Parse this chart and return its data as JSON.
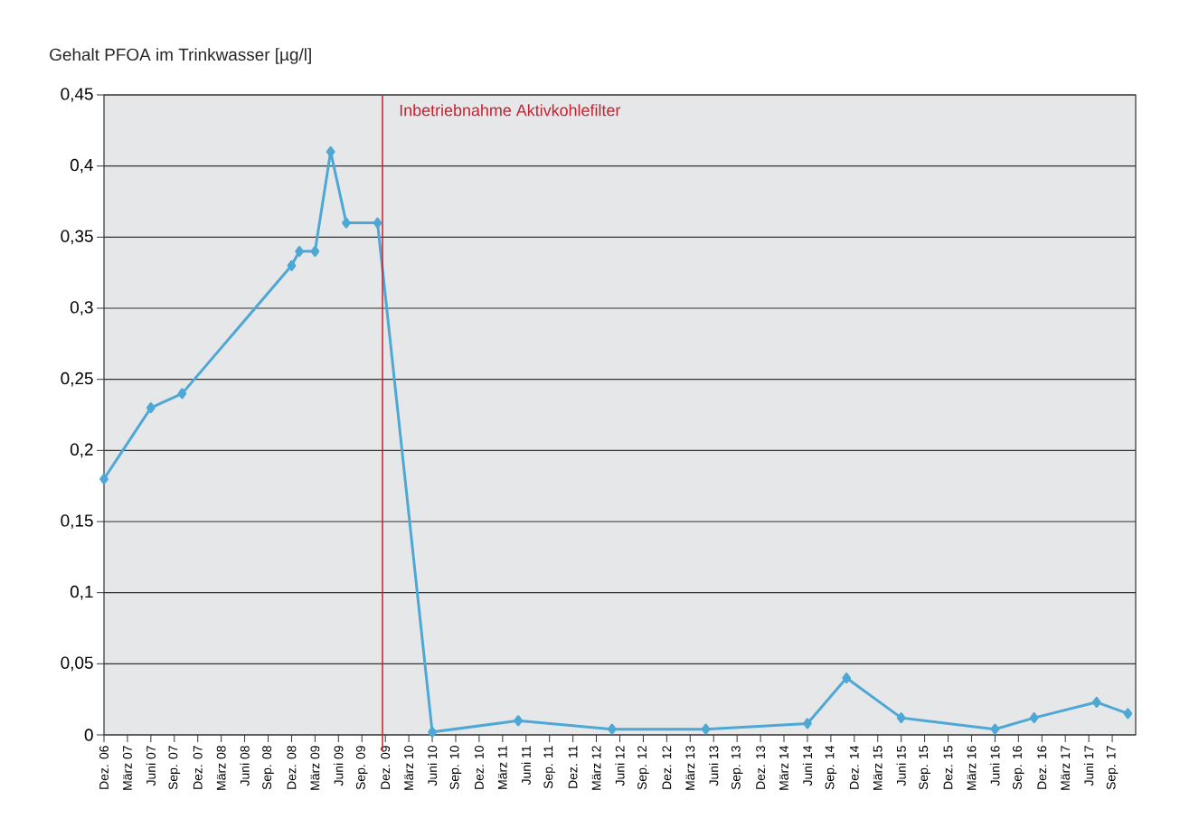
{
  "chart_data": {
    "type": "line",
    "ylabel": "Gehalt PFOA im Trinkwasser [µg/l]",
    "x": [
      "2006-12",
      "2007-06",
      "2007-10",
      "2008-12",
      "2009-01",
      "2009-03",
      "2009-05",
      "2009-07",
      "2009-11",
      "2010-06",
      "2011-05",
      "2012-05",
      "2013-05",
      "2014-06",
      "2014-11",
      "2015-06",
      "2016-06",
      "2016-11",
      "2017-07",
      "2017-11"
    ],
    "series": [
      {
        "color": "#4da8d5",
        "values": [
          0.18,
          0.23,
          0.24,
          0.33,
          0.34,
          0.34,
          0.41,
          0.36,
          0.36,
          0.002,
          0.01,
          0.004,
          0.004,
          0.008,
          0.04,
          0.012,
          0.004,
          0.012,
          0.023,
          0.015
        ]
      }
    ],
    "marker": "diamond",
    "line_style": "solid",
    "grid": "y",
    "xlim": [
      "2006-12",
      "2017-12"
    ],
    "xticks": [
      {
        "value": "2006-12",
        "label": "Dez. 06"
      },
      {
        "value": "2007-03",
        "label": "März 07"
      },
      {
        "value": "2007-06",
        "label": "Juni 07"
      },
      {
        "value": "2007-09",
        "label": "Sep. 07"
      },
      {
        "value": "2007-12",
        "label": "Dez. 07"
      },
      {
        "value": "2008-03",
        "label": "März 08"
      },
      {
        "value": "2008-06",
        "label": "Juni 08"
      },
      {
        "value": "2008-09",
        "label": "Sep. 08"
      },
      {
        "value": "2008-12",
        "label": "Dez. 08"
      },
      {
        "value": "2009-03",
        "label": "März 09"
      },
      {
        "value": "2009-06",
        "label": "Juni 09"
      },
      {
        "value": "2009-09",
        "label": "Sep. 09"
      },
      {
        "value": "2009-12",
        "label": "Dez. 09"
      },
      {
        "value": "2010-03",
        "label": "März 10"
      },
      {
        "value": "2010-06",
        "label": "Juni 10"
      },
      {
        "value": "2010-09",
        "label": "Sep. 10"
      },
      {
        "value": "2010-12",
        "label": "Dez. 10"
      },
      {
        "value": "2011-03",
        "label": "März 11"
      },
      {
        "value": "2011-06",
        "label": "Juni 11"
      },
      {
        "value": "2011-09",
        "label": "Sep. 11"
      },
      {
        "value": "2011-12",
        "label": "Dez. 11"
      },
      {
        "value": "2012-03",
        "label": "März 12"
      },
      {
        "value": "2012-06",
        "label": "Juni 12"
      },
      {
        "value": "2012-09",
        "label": "Sep. 12"
      },
      {
        "value": "2012-12",
        "label": "Dez. 12"
      },
      {
        "value": "2013-03",
        "label": "März 13"
      },
      {
        "value": "2013-06",
        "label": "Juni 13"
      },
      {
        "value": "2013-09",
        "label": "Sep. 13"
      },
      {
        "value": "2013-12",
        "label": "Dez. 13"
      },
      {
        "value": "2014-03",
        "label": "März 14"
      },
      {
        "value": "2014-06",
        "label": "Juni 14"
      },
      {
        "value": "2014-09",
        "label": "Sep. 14"
      },
      {
        "value": "2014-12",
        "label": "Dez. 14"
      },
      {
        "value": "2015-03",
        "label": "März 15"
      },
      {
        "value": "2015-06",
        "label": "Juni 15"
      },
      {
        "value": "2015-09",
        "label": "Sep. 15"
      },
      {
        "value": "2015-12",
        "label": "Dez. 15"
      },
      {
        "value": "2016-03",
        "label": "März 16"
      },
      {
        "value": "2016-06",
        "label": "Juni 16"
      },
      {
        "value": "2016-09",
        "label": "Sep. 16"
      },
      {
        "value": "2016-12",
        "label": "Dez. 16"
      },
      {
        "value": "2017-03",
        "label": "März 17"
      },
      {
        "value": "2017-06",
        "label": "Juni 17"
      },
      {
        "value": "2017-09",
        "label": "Sep. 17"
      }
    ],
    "ylim": [
      0,
      0.45
    ],
    "yticks": [
      0,
      {
        "value": 0.05,
        "label": "0,05"
      },
      {
        "value": 0.1,
        "label": "0,1"
      },
      {
        "value": 0.15,
        "label": "0,15"
      },
      {
        "value": 0.2,
        "label": "0,2"
      },
      {
        "value": 0.25,
        "label": "0,25"
      },
      {
        "value": 0.3,
        "label": "0,3"
      },
      {
        "value": 0.35,
        "label": "0,35"
      },
      {
        "value": 0.4,
        "label": "0,4"
      },
      {
        "value": 0.45,
        "label": "0,45"
      }
    ],
    "ref_lines": [
      {
        "axis": "x",
        "value": "2009-11-20",
        "label": "Inbetriebnahme Aktivkohlefilter",
        "color": "#c8202f"
      }
    ]
  }
}
